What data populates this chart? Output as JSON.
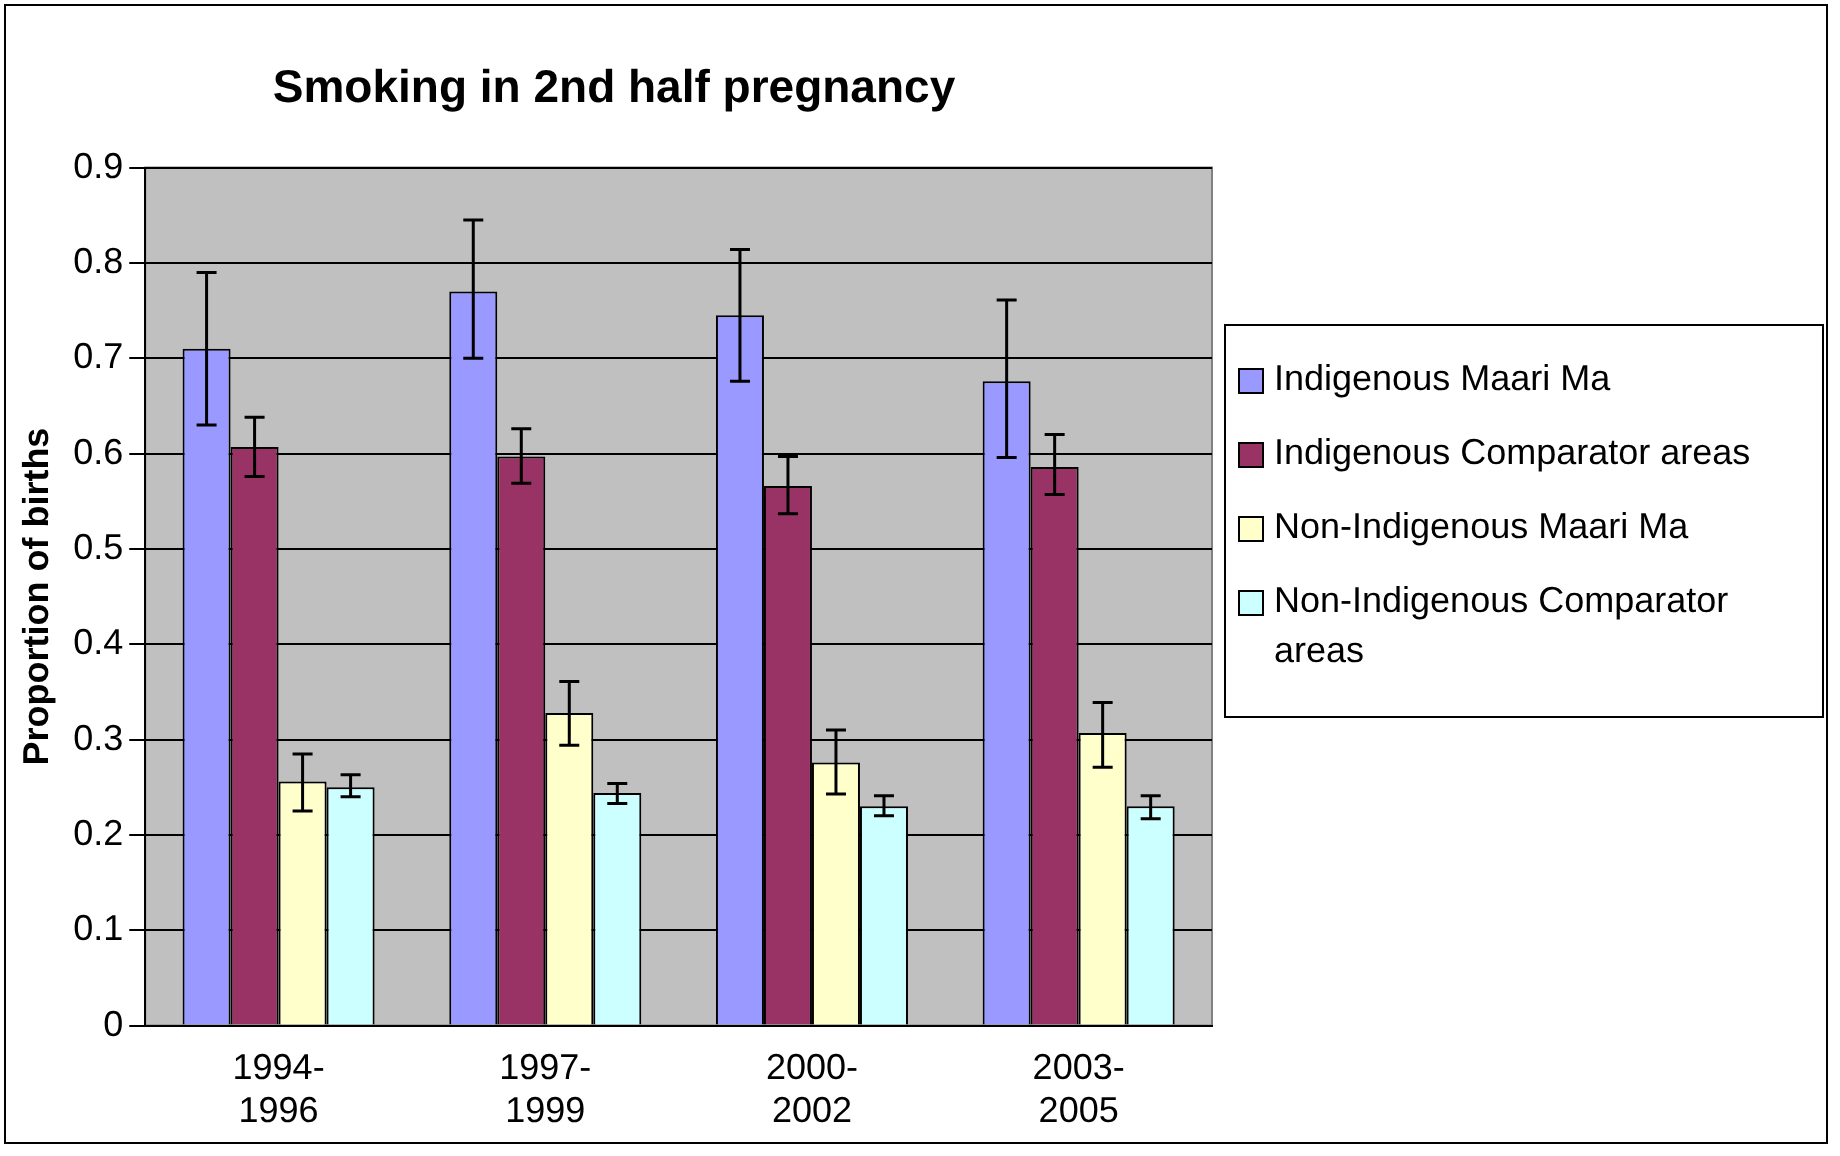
{
  "chart_data": {
    "type": "bar",
    "title": "Smoking in 2nd half pregnancy",
    "ylabel": "Proportion of births",
    "categories": [
      "1994-1996",
      "1997-1999",
      "2000-2002",
      "2003-2005"
    ],
    "series": [
      {
        "name": "Indigenous Maari Ma",
        "color": "#9999ff",
        "values": [
          0.71,
          0.77,
          0.745,
          0.676
        ],
        "errors": [
          [
            0.63,
            0.79
          ],
          [
            0.7,
            0.845
          ],
          [
            0.676,
            0.814
          ],
          [
            0.596,
            0.761
          ]
        ]
      },
      {
        "name": "Indigenous Comparator areas",
        "color": "#993366",
        "values": [
          0.607,
          0.597,
          0.566,
          0.586
        ],
        "errors": [
          [
            0.576,
            0.638
          ],
          [
            0.569,
            0.626
          ],
          [
            0.537,
            0.597
          ],
          [
            0.557,
            0.62
          ]
        ]
      },
      {
        "name": "Non-Indigenous Maari Ma",
        "color": "#ffffcc",
        "values": [
          0.256,
          0.328,
          0.276,
          0.307
        ],
        "errors": [
          [
            0.225,
            0.285
          ],
          [
            0.294,
            0.361
          ],
          [
            0.243,
            0.31
          ],
          [
            0.271,
            0.339
          ]
        ]
      },
      {
        "name": "Non-Indigenous Comparator areas",
        "color": "#ccffff",
        "values": [
          0.25,
          0.244,
          0.23,
          0.23
        ],
        "errors": [
          [
            0.24,
            0.263
          ],
          [
            0.233,
            0.254
          ],
          [
            0.22,
            0.241
          ],
          [
            0.217,
            0.241
          ]
        ]
      }
    ],
    "ylim": [
      0,
      0.9
    ],
    "yticks": [
      0,
      0.1,
      0.2,
      0.3,
      0.4,
      0.5,
      0.6,
      0.7,
      0.8,
      0.9
    ],
    "grid": "y",
    "legend": "right"
  }
}
